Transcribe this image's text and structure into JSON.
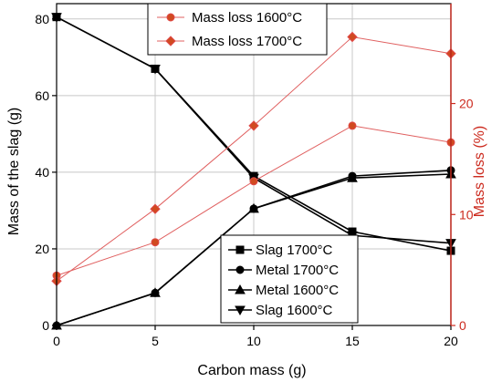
{
  "chart_data": {
    "type": "line",
    "x": [
      0,
      5,
      10,
      15,
      20
    ],
    "xlabel": "Carbon mass (g)",
    "ylabel": "Mass of the slag (g)",
    "ylabel_right": "Mass loss (%)",
    "xlim": [
      0,
      20
    ],
    "ylim": [
      0,
      84
    ],
    "ylim_right": [
      0,
      29
    ],
    "xticks": [
      "0",
      "5",
      "10",
      "15",
      "20"
    ],
    "yticks": [
      "0",
      "20",
      "40",
      "60",
      "80"
    ],
    "yticks_right": [
      "0",
      "10",
      "20"
    ],
    "grid": true,
    "colors": {
      "black": "#000000",
      "loss_line": "#e06060",
      "loss_fill": "#d04a20",
      "loss_edge": "#e04848",
      "right_axis": "#cc2a1e",
      "grid": "#c8c8c8"
    },
    "series": [
      {
        "name": "Slag 1700°C",
        "axis": "left",
        "marker": "square",
        "values": [
          80.5,
          67,
          39,
          24.5,
          19.5
        ]
      },
      {
        "name": "Metal 1700°C",
        "axis": "left",
        "marker": "circle",
        "values": [
          0,
          8.5,
          30.5,
          39,
          40.5
        ]
      },
      {
        "name": "Metal 1600°C",
        "axis": "left",
        "marker": "triangle-up",
        "values": [
          0,
          8.5,
          30.5,
          38.5,
          39.5
        ]
      },
      {
        "name": "Slag 1600°C",
        "axis": "left",
        "marker": "triangle-down",
        "values": [
          80.5,
          67,
          38.5,
          23.5,
          21.5
        ]
      },
      {
        "name": "Mass loss 1600°C",
        "axis": "right",
        "marker": "circle",
        "values": [
          4.5,
          7.5,
          13,
          18,
          16.5
        ]
      },
      {
        "name": "Mass loss 1700°C",
        "axis": "right",
        "marker": "diamond",
        "values": [
          4,
          10.5,
          18,
          26,
          24.5
        ]
      }
    ],
    "legend_loss_position": "top-center",
    "legend_main_position": "bottom-center"
  }
}
